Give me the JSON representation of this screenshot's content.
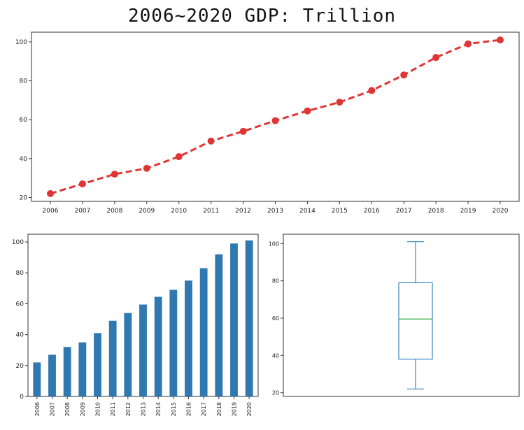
{
  "title": "2006~2020 GDP: Trillion",
  "colors": {
    "line": "#e03535",
    "bar": "#2f78b0",
    "box": "#3a86c0",
    "median": "#3fb24a"
  },
  "chart_data": [
    {
      "type": "line",
      "x": [
        "2006",
        "2007",
        "2008",
        "2009",
        "2010",
        "2011",
        "2012",
        "2013",
        "2014",
        "2015",
        "2016",
        "2017",
        "2018",
        "2019",
        "2020"
      ],
      "values": [
        22,
        27,
        32,
        35,
        41,
        49,
        54,
        59.5,
        64.5,
        69,
        75,
        83,
        92,
        99,
        101
      ],
      "ylim": [
        18,
        105
      ],
      "yticks": [
        "20",
        "40",
        "60",
        "80",
        "100"
      ],
      "line_style": "dashed",
      "marker": "circle",
      "grid": false
    },
    {
      "type": "bar",
      "categories": [
        "2006",
        "2007",
        "2008",
        "2009",
        "2010",
        "2011",
        "2012",
        "2013",
        "2014",
        "2015",
        "2016",
        "2017",
        "2018",
        "2019",
        "2020"
      ],
      "values": [
        22,
        27,
        32,
        35,
        41,
        49,
        54,
        59.5,
        64.5,
        69,
        75,
        83,
        92,
        99,
        101
      ],
      "ylim": [
        0,
        105
      ],
      "yticks": [
        "0",
        "20",
        "40",
        "60",
        "80",
        "100"
      ],
      "xtick_rotation": 90,
      "grid": false
    },
    {
      "type": "box",
      "min": 22,
      "q1": 38,
      "median": 59.5,
      "q3": 79,
      "max": 101,
      "ylim": [
        18,
        105
      ],
      "yticks": [
        "20",
        "40",
        "60",
        "80",
        "100"
      ],
      "grid": false
    }
  ]
}
